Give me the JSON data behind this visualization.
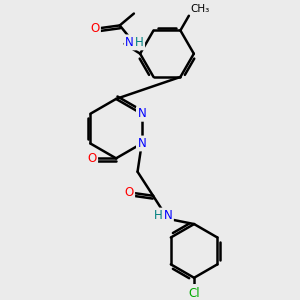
{
  "bg_color": "#ebebeb",
  "bond_color": "#000000",
  "bond_width": 1.8,
  "atom_colors": {
    "N": "#0000ff",
    "O": "#ff0000",
    "Cl": "#00aa00",
    "H": "#008080",
    "C": "#000000"
  },
  "font_size_atom": 8.5,
  "font_size_small": 7.5
}
